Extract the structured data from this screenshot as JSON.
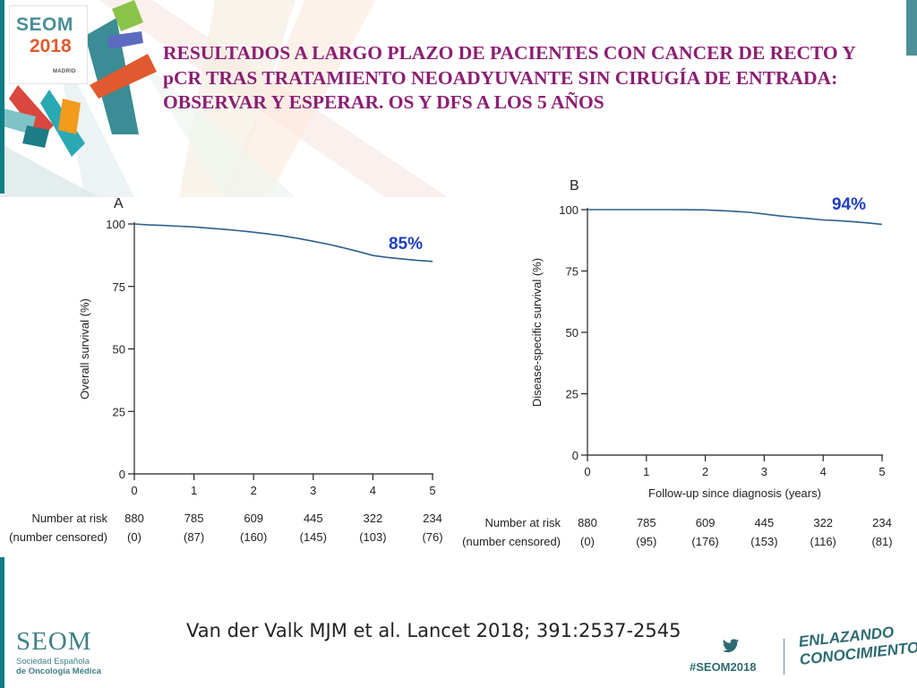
{
  "header": {
    "logo_seom": "SEOM",
    "logo_year": "2018",
    "logo_city": "MADRID",
    "title": "RESULTADOS A LARGO PLAZO DE PACIENTES CON CANCER DE RECTO Y pCR TRAS TRATAMIENTO NEOADYUVANTE SIN CIRUGÍA DE ENTRADA: OBSERVAR Y ESPERAR. OS Y DFS A LOS 5 AÑOS"
  },
  "colors": {
    "title": "#8b1e73",
    "curve": "#2b5f8f",
    "annotation": "#1f3fbf",
    "brand": "#3e7f86"
  },
  "chart_data": [
    {
      "type": "line",
      "panel_label": "A",
      "ylabel": "Overall survival (%)",
      "xlabel": "",
      "xlim": [
        0,
        5
      ],
      "ylim": [
        0,
        100
      ],
      "xticks": [
        0,
        1,
        2,
        3,
        4,
        5
      ],
      "yticks": [
        0,
        25,
        50,
        75,
        100
      ],
      "series": [
        {
          "x": [
            0,
            0.25,
            0.5,
            0.75,
            1.0,
            1.25,
            1.5,
            1.75,
            2.0,
            2.25,
            2.5,
            2.75,
            3.0,
            3.25,
            3.5,
            3.75,
            4.0,
            4.25,
            4.5,
            4.75,
            5.0
          ],
          "y": [
            100,
            99.6,
            99.4,
            99.1,
            98.8,
            98.3,
            97.9,
            97.3,
            96.7,
            96.0,
            95.2,
            94.2,
            93.1,
            91.9,
            90.5,
            89.0,
            87.4,
            86.6,
            86.0,
            85.4,
            85.0
          ]
        }
      ],
      "annotation": "85%",
      "risk_table": {
        "row1_label": "Number at risk",
        "row2_label": "(number censored)",
        "at_risk": [
          "880",
          "785",
          "609",
          "445",
          "322",
          "234"
        ],
        "censored": [
          "(0)",
          "(87)",
          "(160)",
          "(145)",
          "(103)",
          "(76)"
        ]
      }
    },
    {
      "type": "line",
      "panel_label": "B",
      "ylabel": "Disease-specific survival (%)",
      "xlabel": "Follow-up since diagnosis (years)",
      "xlim": [
        0,
        5
      ],
      "ylim": [
        0,
        100
      ],
      "xticks": [
        0,
        1,
        2,
        3,
        4,
        5
      ],
      "yticks": [
        0,
        25,
        50,
        75,
        100
      ],
      "series": [
        {
          "x": [
            0,
            0.5,
            1.0,
            1.5,
            2.0,
            2.25,
            2.5,
            2.75,
            3.0,
            3.25,
            3.5,
            3.75,
            4.0,
            4.25,
            4.5,
            4.75,
            5.0
          ],
          "y": [
            100,
            100,
            100,
            100,
            99.9,
            99.6,
            99.3,
            98.9,
            98.2,
            97.5,
            96.9,
            96.4,
            95.8,
            95.5,
            95.1,
            94.6,
            94.0
          ]
        }
      ],
      "annotation": "94%",
      "risk_table": {
        "row1_label": "Number at risk",
        "row2_label": "(number censored)",
        "at_risk": [
          "880",
          "785",
          "609",
          "445",
          "322",
          "234"
        ],
        "censored": [
          "(0)",
          "(95)",
          "(176)",
          "(153)",
          "(116)",
          "(81)"
        ]
      }
    }
  ],
  "footer": {
    "citation": "Van der Valk MJM et al. Lancet 2018; 391:2537-2545",
    "seom": "SEOM",
    "seom_sub1": "Sociedad Española",
    "seom_sub2": "de Oncología Médica",
    "twitter_icon": "twitter-bird-icon",
    "hashtag": "#SEOM2018",
    "tagline_1": "ENLAZANDO",
    "tagline_2": "CONOCIMIENTO"
  }
}
